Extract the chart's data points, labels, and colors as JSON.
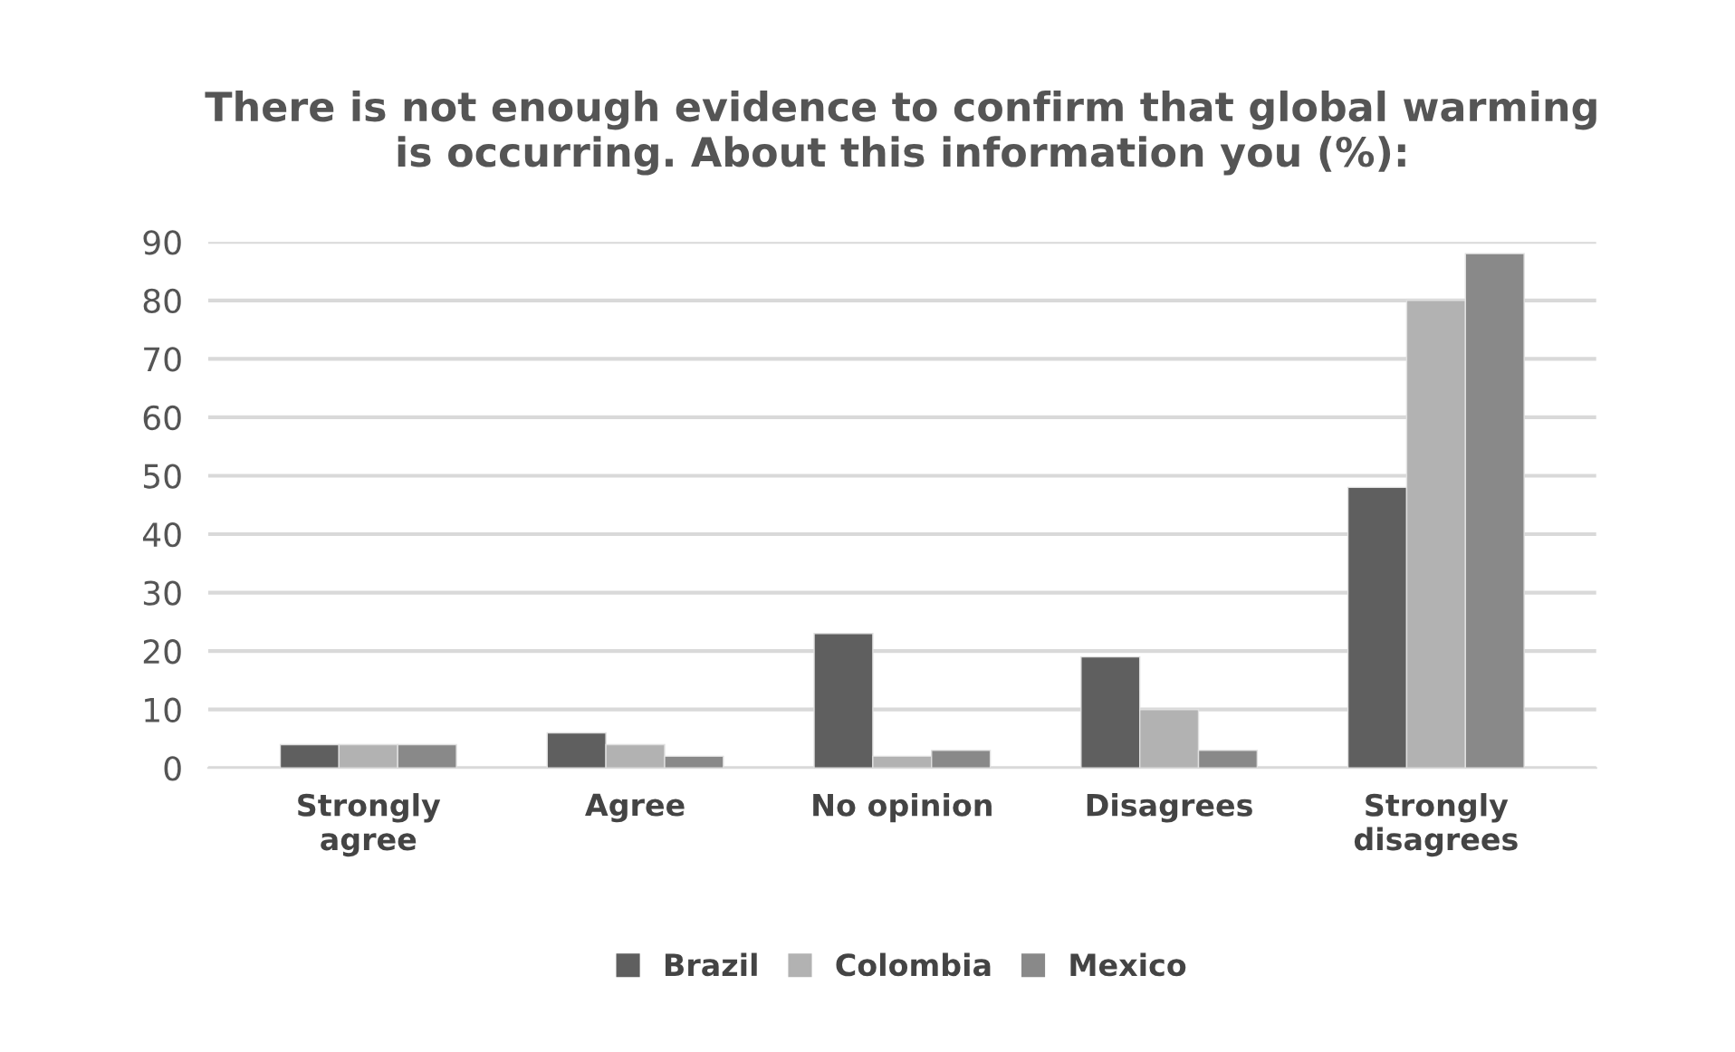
{
  "chart_data": {
    "type": "bar",
    "title": "There is not enough evidence to confirm that global warming\nis occurring. About this information you (%):",
    "categories": [
      "Strongly\nagree",
      "Agree",
      "No opinion",
      "Disagrees",
      "Strongly\ndisagrees"
    ],
    "series": [
      {
        "name": "Brazil",
        "color": "#5f5f5f",
        "values": [
          4,
          6,
          23,
          19,
          48
        ]
      },
      {
        "name": "Colombia",
        "color": "#b2b2b2",
        "values": [
          4,
          4,
          2,
          10,
          80
        ]
      },
      {
        "name": "Mexico",
        "color": "#898989",
        "values": [
          4,
          2,
          3,
          3,
          88
        ]
      }
    ],
    "ylim": [
      0,
      90
    ],
    "yticks": [
      0,
      10,
      20,
      30,
      40,
      50,
      60,
      70,
      80,
      90
    ],
    "grid": "y",
    "legend": "bottom"
  }
}
